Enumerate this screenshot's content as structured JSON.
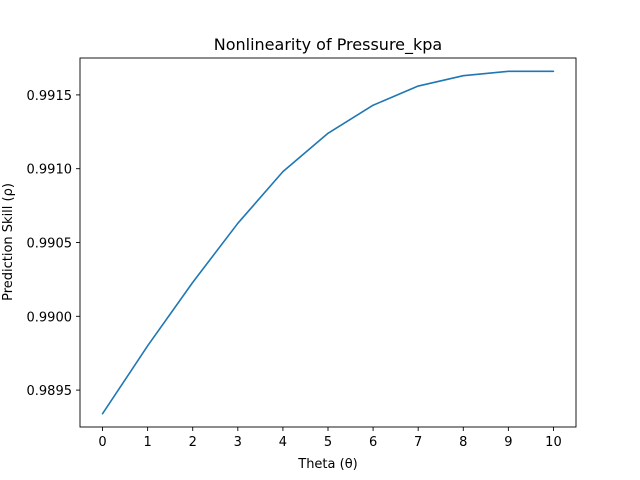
{
  "chart_data": {
    "type": "line",
    "title": "Nonlinearity of Pressure_kpa",
    "xlabel": "Theta (θ)",
    "ylabel": "Prediction Skill (ρ)",
    "x": [
      0,
      1,
      2,
      3,
      4,
      5,
      6,
      7,
      8,
      9,
      10
    ],
    "series": [
      {
        "values": [
          0.98934,
          0.9898,
          0.99023,
          0.99063,
          0.99098,
          0.99124,
          0.99143,
          0.99156,
          0.99163,
          0.99166,
          0.99166
        ]
      }
    ],
    "xlim": [
      -0.5,
      10.5
    ],
    "ylim": [
      0.98925,
      0.99175
    ],
    "xticks": [
      "0",
      "1",
      "2",
      "3",
      "4",
      "5",
      "6",
      "7",
      "8",
      "9",
      "10"
    ],
    "yticks": [
      {
        "value": 0.9895,
        "label": "0.9895"
      },
      {
        "value": 0.99,
        "label": "0.9900"
      },
      {
        "value": 0.9905,
        "label": "0.9905"
      },
      {
        "value": 0.991,
        "label": "0.9910"
      },
      {
        "value": 0.9915,
        "label": "0.9915"
      }
    ],
    "grid": false,
    "line_color": "#1f77b4"
  }
}
